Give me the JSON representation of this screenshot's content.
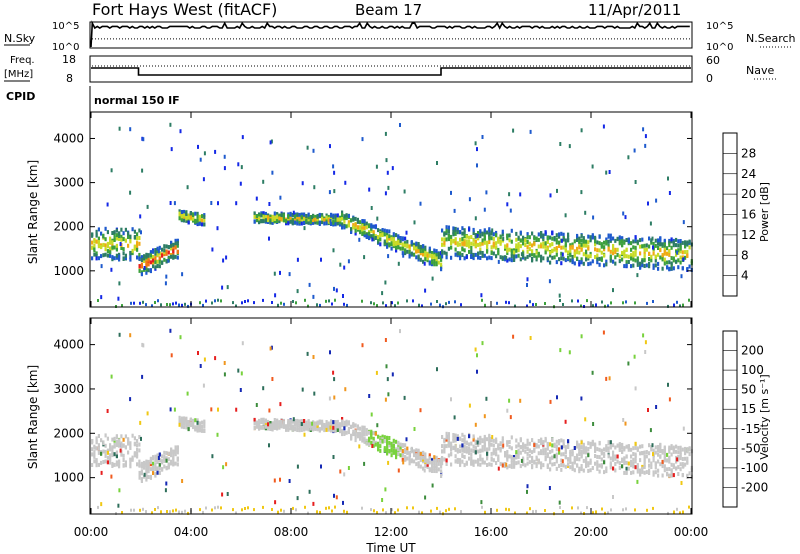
{
  "header": {
    "station": "Fort Hays West (fitACF)",
    "beam": "Beam 17",
    "date": "11/Apr/2011"
  },
  "panels": {
    "noise": {
      "left_label": "N.Sky",
      "left_ticks": [
        "10^5",
        "10^0"
      ],
      "right_ticks": [
        "10^5",
        "10^0"
      ],
      "right_label": "N.Search",
      "sky_noise_level": 0.8,
      "search_noise_level": 0.35
    },
    "freq": {
      "left_label": "Freq.",
      "left_unit": "[MHz]",
      "left_ticks": [
        "18",
        "8"
      ],
      "right_ticks": [
        "60",
        "0"
      ],
      "right_label": "Nave",
      "freq_segments": [
        {
          "start_h": 0.0,
          "end_h": 1.9,
          "value": 14
        },
        {
          "start_h": 1.9,
          "end_h": 14.0,
          "value": 10.5
        },
        {
          "start_h": 14.0,
          "end_h": 24.0,
          "value": 14
        }
      ],
      "nave_level": 48
    },
    "cpid": {
      "label": "CPID",
      "mode": "normal 150 IF"
    }
  },
  "chart_data": [
    {
      "type": "heatmap",
      "name": "power",
      "ylabel": "Slant Range [km]",
      "yticks": [
        1000,
        2000,
        3000,
        4000
      ],
      "ylim": [
        180,
        4600
      ],
      "xlim": [
        0,
        24
      ],
      "xticks": [
        "00:00",
        "04:00",
        "08:00",
        "12:00",
        "16:00",
        "20:00",
        "00:00"
      ],
      "colorbar": {
        "label": "Power [dB]",
        "ticks": [
          "4",
          "8",
          "12",
          "16",
          "20",
          "24",
          "28"
        ],
        "colors": [
          "#1428e6",
          "#1e5acd",
          "#2d7d64",
          "#3ca03c",
          "#c8dc28",
          "#f0aa14",
          "#f07814",
          "#e61e1e"
        ]
      },
      "bands": [
        {
          "x": [
            0.0,
            1.9
          ],
          "center": [
            1650,
            1650
          ],
          "width": 700
        },
        {
          "x": [
            1.9,
            3.5
          ],
          "center": [
            1150,
            1550
          ],
          "width": 450
        },
        {
          "x": [
            3.5,
            4.5
          ],
          "center": [
            2300,
            2200
          ],
          "width": 250
        },
        {
          "x": [
            6.5,
            10.0
          ],
          "center": [
            2250,
            2200
          ],
          "width": 220
        },
        {
          "x": [
            10.0,
            14.0
          ],
          "center": [
            2200,
            1250
          ],
          "width": 380
        },
        {
          "x": [
            14.0,
            24.0
          ],
          "center": [
            1700,
            1400
          ],
          "width": 700
        }
      ]
    },
    {
      "type": "heatmap",
      "name": "velocity",
      "ylabel": "Slant Range [km]",
      "yticks": [
        1000,
        2000,
        3000,
        4000
      ],
      "ylim": [
        180,
        4600
      ],
      "xlim": [
        0,
        24
      ],
      "xticks": [
        "00:00",
        "04:00",
        "08:00",
        "12:00",
        "16:00",
        "20:00",
        "00:00"
      ],
      "xlabel": "Time UT",
      "colorbar": {
        "label": "Velocity [m s⁻¹]",
        "ticks": [
          "200",
          "100",
          "50",
          "15",
          "-15",
          "-50",
          "-100",
          "-200"
        ],
        "colors": [
          "#1428b4",
          "#2d6e5a",
          "#3c8c3c",
          "#78d23c",
          "#c8c8c8",
          "#f0c814",
          "#f0961e",
          "#f05a1e",
          "#e61e1e"
        ]
      }
    }
  ],
  "colors": {
    "ground_scatter": "#c8c8c8",
    "bg": "#ffffff"
  }
}
